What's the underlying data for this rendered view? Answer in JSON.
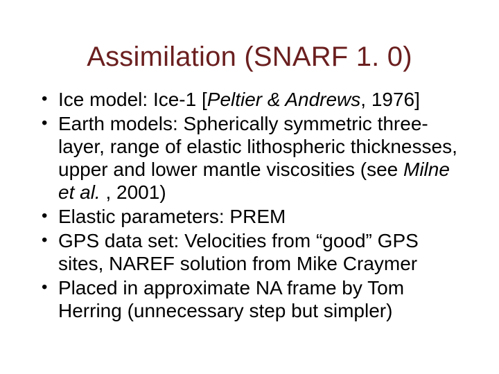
{
  "title": "Assimilation (SNARF 1. 0)",
  "title_color": "#6b1f1f",
  "title_fontsize": 40,
  "body_color": "#000000",
  "body_fontsize": 28,
  "background_color": "#ffffff",
  "bullets": [
    {
      "pre": "Ice model: Ice-1 [",
      "ital": "Peltier & Andrews",
      "post": ", 1976]"
    },
    {
      "pre": "Earth models: Spherically symmetric three-layer, range of elastic lithospheric thicknesses, upper and lower mantle viscosities (see ",
      "ital": "Milne et al.",
      "post": " , 2001)"
    },
    {
      "pre": "Elastic parameters: PREM",
      "ital": "",
      "post": ""
    },
    {
      "pre": "GPS data set: Velocities from “good” GPS sites, NAREF solution from Mike Craymer",
      "ital": "",
      "post": ""
    },
    {
      "pre": "Placed in approximate NA frame by Tom Herring (unnecessary step but simpler)",
      "ital": "",
      "post": ""
    }
  ]
}
